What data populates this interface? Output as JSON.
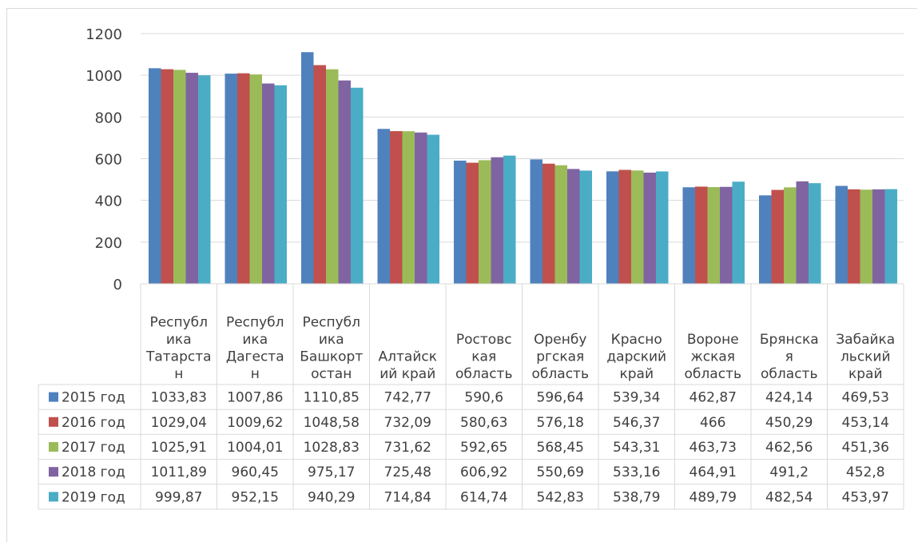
{
  "chart_data": {
    "type": "bar",
    "title": "",
    "xlabel": "",
    "ylabel": "",
    "ylim": [
      0,
      1200
    ],
    "yticks": [
      "0",
      "200",
      "400",
      "600",
      "800",
      "1000",
      "1200"
    ],
    "grid": true,
    "legend": "data-table",
    "categories": [
      [
        "Республ",
        "ика",
        "Татарста",
        "н"
      ],
      [
        "Республ",
        "ика",
        "Дагеста",
        "н"
      ],
      [
        "Республ",
        "ика",
        "Башкорт",
        "остан"
      ],
      [
        "Алтайск",
        "ий край"
      ],
      [
        "Ростовс",
        "кая",
        "область"
      ],
      [
        "Оренбу",
        "ргская",
        "область"
      ],
      [
        "Красно",
        "дарский",
        "край"
      ],
      [
        "Вороне",
        "жская",
        "область"
      ],
      [
        "Брянска",
        "я",
        "область"
      ],
      [
        "Забайка",
        "льский",
        "край"
      ]
    ],
    "series": [
      {
        "name": "2015 год",
        "color": "#4f81bd",
        "values": [
          1033.83,
          1007.86,
          1110.85,
          742.77,
          590.6,
          596.64,
          539.34,
          462.87,
          424.14,
          469.53
        ],
        "labels": [
          "1033,83",
          "1007,86",
          "1110,85",
          "742,77",
          "590,6",
          "596,64",
          "539,34",
          "462,87",
          "424,14",
          "469,53"
        ]
      },
      {
        "name": "2016 год",
        "color": "#c0504d",
        "values": [
          1029.04,
          1009.62,
          1048.58,
          732.09,
          580.63,
          576.18,
          546.37,
          466,
          450.29,
          453.14
        ],
        "labels": [
          "1029,04",
          "1009,62",
          "1048,58",
          "732,09",
          "580,63",
          "576,18",
          "546,37",
          "466",
          "450,29",
          "453,14"
        ]
      },
      {
        "name": "2017 год",
        "color": "#9bbb59",
        "values": [
          1025.91,
          1004.01,
          1028.83,
          731.62,
          592.65,
          568.45,
          543.31,
          463.73,
          462.56,
          451.36
        ],
        "labels": [
          "1025,91",
          "1004,01",
          "1028,83",
          "731,62",
          "592,65",
          "568,45",
          "543,31",
          "463,73",
          "462,56",
          "451,36"
        ]
      },
      {
        "name": "2018 год",
        "color": "#8064a2",
        "values": [
          1011.89,
          960.45,
          975.17,
          725.48,
          606.92,
          550.69,
          533.16,
          464.91,
          491.2,
          452.8
        ],
        "labels": [
          "1011,89",
          "960,45",
          "975,17",
          "725,48",
          "606,92",
          "550,69",
          "533,16",
          "464,91",
          "491,2",
          "452,8"
        ]
      },
      {
        "name": "2019 год",
        "color": "#4bacc6",
        "values": [
          999.87,
          952.15,
          940.29,
          714.84,
          614.74,
          542.83,
          538.79,
          489.79,
          482.54,
          453.97
        ],
        "labels": [
          "999,87",
          "952,15",
          "940,29",
          "714,84",
          "614,74",
          "542,83",
          "538,79",
          "489,79",
          "482,54",
          "453,97"
        ]
      }
    ]
  }
}
